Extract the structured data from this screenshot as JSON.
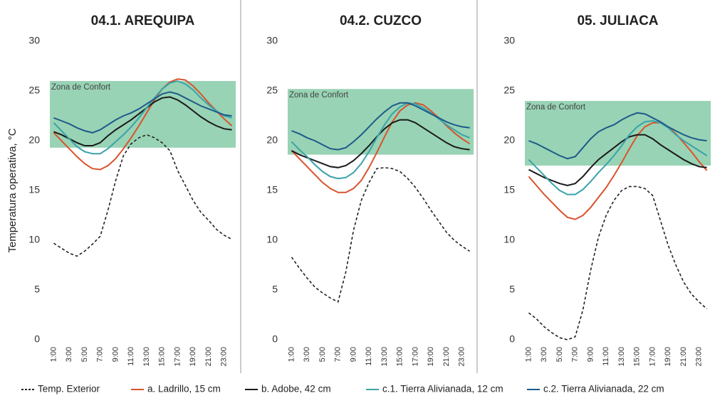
{
  "chart_data": [
    {
      "type": "line",
      "title": "04.1. AREQUIPA",
      "y_label": "Temperatura operativa, °C",
      "categories": [
        "1:00",
        null,
        "3:00",
        null,
        "5:00",
        null,
        "7:00",
        null,
        "9:00",
        null,
        "11:00",
        null,
        "13:00",
        null,
        "15:00",
        null,
        "17:00",
        null,
        "19:00",
        null,
        "21:00",
        null,
        "23:00",
        null
      ],
      "ylim": [
        0,
        30
      ],
      "yticks": [
        0,
        5,
        10,
        15,
        20,
        25,
        30
      ],
      "comfort_zone": {
        "label": "Zona de Confort",
        "range": [
          19.3,
          26
        ],
        "color": "#86cba8"
      },
      "series": [
        {
          "name": "Temp. Exterior",
          "color": "#222222",
          "dashed": true,
          "values": [
            9.7,
            9.2,
            8.7,
            8.4,
            8.9,
            9.6,
            10.4,
            13,
            16,
            18.5,
            19.7,
            20.3,
            20.6,
            20.3,
            19.8,
            19,
            17,
            15.5,
            14,
            12.8,
            12,
            11.1,
            10.5,
            10.1
          ]
        },
        {
          "name": "a. Ladrillo, 15 cm",
          "color": "#d9532c",
          "values": [
            20.8,
            20,
            19.2,
            18.4,
            17.7,
            17.2,
            17.1,
            17.5,
            18.2,
            19.2,
            20.3,
            21.5,
            22.8,
            24.1,
            25.2,
            25.9,
            26.2,
            26.1,
            25.5,
            24.7,
            23.8,
            23,
            22.2,
            21.5
          ]
        },
        {
          "name": "b. Adobe, 42 cm",
          "color": "#1a1a1a",
          "values": [
            20.9,
            20.6,
            20.2,
            19.8,
            19.5,
            19.5,
            19.8,
            20.5,
            21.1,
            21.6,
            22.1,
            22.7,
            23.3,
            23.9,
            24.3,
            24.4,
            24.1,
            23.6,
            23,
            22.4,
            21.9,
            21.5,
            21.2,
            21.1
          ]
        },
        {
          "name": "c.1. Tierra Alivianada, 12 cm",
          "color": "#3aa3a8",
          "values": [
            21.8,
            21,
            20.2,
            19.4,
            18.9,
            18.7,
            18.7,
            19.2,
            19.9,
            20.6,
            21.4,
            22.3,
            23.3,
            24.3,
            25.2,
            25.8,
            26,
            25.7,
            25.1,
            24.3,
            23.6,
            23,
            22.5,
            22.3
          ]
        },
        {
          "name": "c.2. Tierra Alivianada, 22 cm",
          "color": "#1f5a8a",
          "values": [
            22.3,
            22,
            21.7,
            21.3,
            21,
            20.8,
            21.1,
            21.6,
            22.1,
            22.5,
            22.8,
            23.2,
            23.7,
            24.2,
            24.7,
            24.9,
            24.7,
            24.3,
            23.9,
            23.5,
            23.2,
            22.9,
            22.6,
            22.5
          ]
        }
      ]
    },
    {
      "type": "line",
      "title": "04.2. CUZCO",
      "categories": [
        "1:00",
        null,
        "3:00",
        null,
        "5:00",
        null,
        "7:00",
        null,
        "9:00",
        null,
        "11:00",
        null,
        "13:00",
        null,
        "15:00",
        null,
        "17:00",
        null,
        "19:00",
        null,
        "21:00",
        null,
        "23:00",
        null
      ],
      "ylim": [
        0,
        30
      ],
      "yticks": [
        0,
        5,
        10,
        15,
        20,
        25,
        30
      ],
      "comfort_zone": {
        "label": "Zona de Confort",
        "range": [
          18.6,
          25.2
        ],
        "color": "#86cba8"
      },
      "series": [
        {
          "color": "#222222",
          "dashed": true,
          "values": [
            8.3,
            7.2,
            6.2,
            5.3,
            4.7,
            4.2,
            3.8,
            6.8,
            11,
            14,
            15.8,
            17.2,
            17.3,
            17.2,
            16.9,
            16.2,
            15.3,
            14.2,
            13,
            11.9,
            10.8,
            10,
            9.4,
            8.9
          ]
        },
        {
          "color": "#d9532c",
          "values": [
            19,
            18.2,
            17.4,
            16.6,
            15.8,
            15.2,
            14.8,
            14.8,
            15.2,
            16,
            17.3,
            18.8,
            20.4,
            21.9,
            23,
            23.6,
            23.8,
            23.6,
            23,
            22.3,
            21.5,
            20.8,
            20.2,
            19.7
          ]
        },
        {
          "color": "#1a1a1a",
          "values": [
            19,
            18.6,
            18.3,
            18,
            17.7,
            17.4,
            17.3,
            17.5,
            18,
            18.7,
            19.5,
            20.4,
            21.2,
            21.8,
            22.1,
            22.1,
            21.8,
            21.3,
            20.8,
            20.3,
            19.8,
            19.4,
            19.2,
            19.1
          ]
        },
        {
          "color": "#3aa3a8",
          "values": [
            19.9,
            19.1,
            18.4,
            17.6,
            16.9,
            16.4,
            16.2,
            16.3,
            16.8,
            17.7,
            18.9,
            20.3,
            21.6,
            22.7,
            23.4,
            23.8,
            23.7,
            23.3,
            22.8,
            22.2,
            21.6,
            21.1,
            20.6,
            20.3
          ]
        },
        {
          "color": "#1f5a8a",
          "values": [
            21,
            20.7,
            20.3,
            20,
            19.6,
            19.2,
            19.1,
            19.3,
            19.9,
            20.6,
            21.4,
            22.2,
            22.9,
            23.5,
            23.8,
            23.8,
            23.5,
            23.1,
            22.7,
            22.3,
            21.9,
            21.6,
            21.4,
            21.3
          ]
        }
      ]
    },
    {
      "type": "line",
      "title": "05. JULIACA",
      "categories": [
        "1:00",
        null,
        "3:00",
        null,
        "5:00",
        null,
        "7:00",
        null,
        "9:00",
        null,
        "11:00",
        null,
        "13:00",
        null,
        "15:00",
        null,
        "17:00",
        null,
        "19:00",
        null,
        "21:00",
        null,
        "23:00",
        null
      ],
      "ylim": [
        0,
        30
      ],
      "yticks": [
        0,
        5,
        10,
        15,
        20,
        25,
        30
      ],
      "comfort_zone": {
        "label": "Zona de Confort",
        "range": [
          17.5,
          24
        ],
        "color": "#86cba8"
      },
      "series": [
        {
          "color": "#222222",
          "dashed": true,
          "values": [
            2.7,
            2.1,
            1.3,
            0.7,
            0.2,
            0,
            0.3,
            3,
            7,
            10.3,
            12.5,
            14,
            15,
            15.4,
            15.4,
            15.2,
            14.5,
            12,
            9.5,
            7.5,
            5.8,
            4.6,
            3.8,
            3.1
          ]
        },
        {
          "color": "#d9532c",
          "values": [
            16.4,
            15.5,
            14.6,
            13.8,
            13,
            12.3,
            12.1,
            12.5,
            13.3,
            14.3,
            15.3,
            16.5,
            17.8,
            19.2,
            20.5,
            21.4,
            21.8,
            21.8,
            21.4,
            20.7,
            19.8,
            18.9,
            17.9,
            17
          ]
        },
        {
          "color": "#1a1a1a",
          "values": [
            17.1,
            16.7,
            16.3,
            16,
            15.7,
            15.5,
            15.7,
            16.4,
            17.3,
            18.1,
            18.7,
            19.3,
            19.9,
            20.4,
            20.6,
            20.6,
            20.2,
            19.6,
            19.1,
            18.6,
            18.1,
            17.7,
            17.4,
            17.3
          ]
        },
        {
          "color": "#3aa3a8",
          "values": [
            18.1,
            17.3,
            16.5,
            15.7,
            15,
            14.6,
            14.6,
            15.1,
            15.9,
            16.8,
            17.6,
            18.5,
            19.5,
            20.6,
            21.4,
            21.9,
            22,
            21.8,
            21.3,
            20.6,
            20,
            19.5,
            19,
            18.5
          ]
        },
        {
          "color": "#1f5a8a",
          "values": [
            20,
            19.7,
            19.3,
            18.9,
            18.5,
            18.2,
            18.4,
            19.3,
            20.2,
            20.9,
            21.3,
            21.6,
            22.1,
            22.5,
            22.8,
            22.7,
            22.3,
            21.9,
            21.4,
            21,
            20.6,
            20.3,
            20.1,
            20
          ]
        }
      ]
    }
  ]
}
